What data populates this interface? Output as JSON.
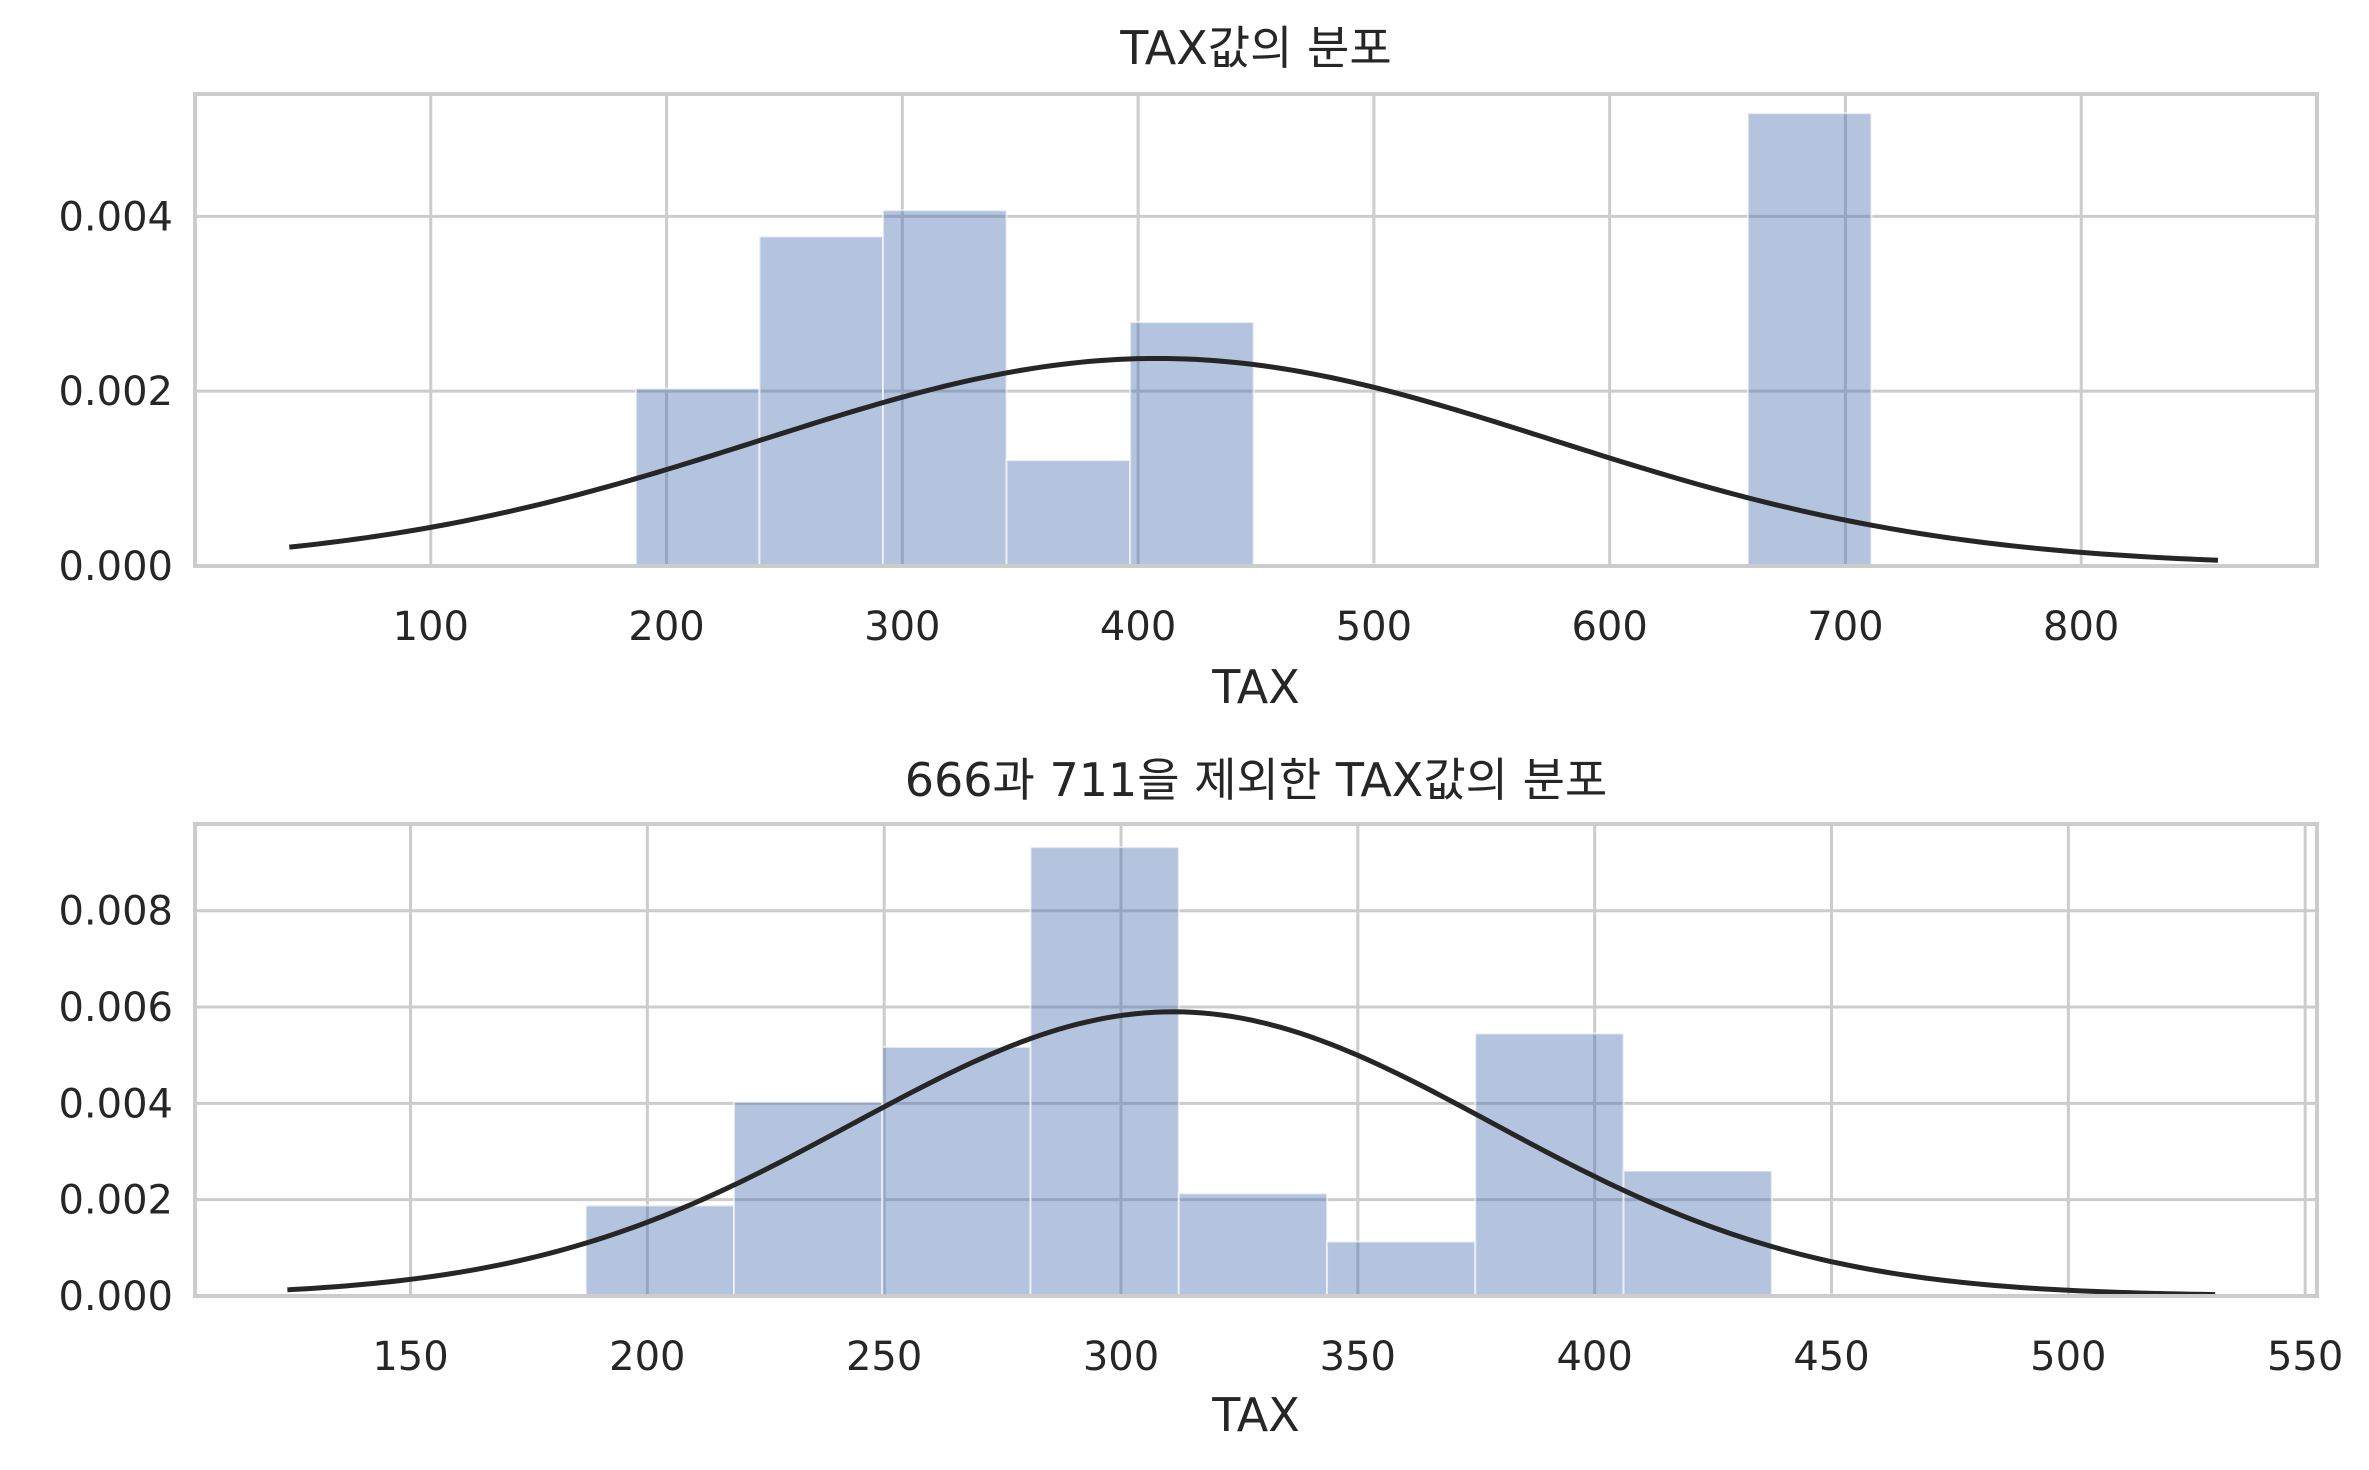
{
  "chart_data": [
    {
      "type": "bar",
      "title": "TAX값의 분포",
      "xlabel": "TAX",
      "ylabel": "",
      "xlim": [
        0,
        900
      ],
      "ylim": [
        0,
        0.0054
      ],
      "grid": true,
      "xticks": [
        100,
        200,
        300,
        400,
        500,
        600,
        700,
        800
      ],
      "yticks": [
        0.0,
        0.002,
        0.004
      ],
      "tick_format_y": 3,
      "bin_edges": [
        187,
        239.4,
        291.8,
        344.2,
        396.6,
        449.0,
        501.4,
        553.8,
        606.2,
        658.6,
        711
      ],
      "values": [
        0.00203,
        0.00377,
        0.00407,
        0.00121,
        0.00279,
        2e-05,
        1e-05,
        1e-05,
        1e-05,
        0.00518
      ],
      "fit_curve": {
        "name": "normal fit",
        "mean": 408,
        "std": 168,
        "x_start": 40,
        "x_end": 858
      },
      "colors": {
        "bar": "#4c72b0",
        "curve": "#262626",
        "grid": "#cccccc"
      }
    },
    {
      "type": "bar",
      "title": "666과 711을 제외한 TAX값의 분포",
      "xlabel": "TAX",
      "ylabel": "",
      "xlim": [
        104.5,
        552.5
      ],
      "ylim": [
        0,
        0.0098
      ],
      "grid": true,
      "xticks": [
        150,
        200,
        250,
        300,
        350,
        400,
        450,
        500,
        550
      ],
      "yticks": [
        0.0,
        0.002,
        0.004,
        0.006,
        0.008
      ],
      "tick_format_y": 3,
      "bin_edges": [
        187,
        218.3,
        249.6,
        280.9,
        312.2,
        343.5,
        374.8,
        406.1,
        437.4,
        468.7,
        500
      ],
      "values": [
        0.00188,
        0.00403,
        0.00517,
        0.00932,
        0.00213,
        0.00113,
        0.00545,
        0.0026,
        3e-05,
        2e-05
      ],
      "fit_curve": {
        "name": "normal fit",
        "mean": 311,
        "std": 67.6,
        "x_start": 124,
        "x_end": 531
      },
      "colors": {
        "bar": "#4c72b0",
        "curve": "#262626",
        "grid": "#cccccc"
      }
    }
  ]
}
